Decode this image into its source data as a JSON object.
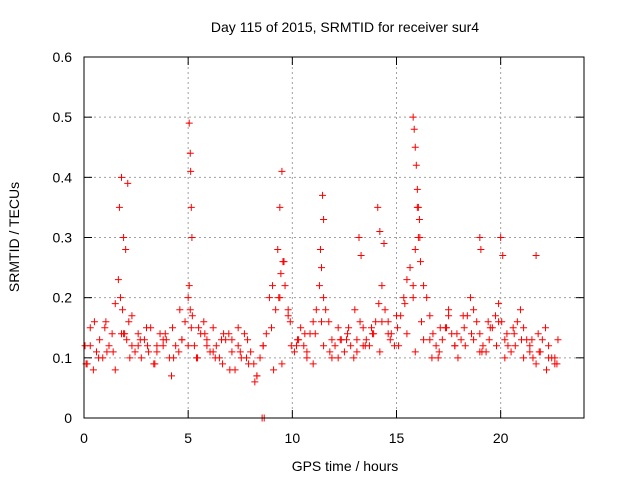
{
  "chart_data": {
    "type": "scatter",
    "title": "Day 115 of 2015, SRMTID for receiver sur4",
    "xlabel": "GPS time / hours",
    "ylabel": "SRMTID / TECUs",
    "xlim": [
      0,
      24
    ],
    "ylim": [
      0,
      0.6
    ],
    "x_ticks": [
      0,
      5,
      10,
      15,
      20
    ],
    "x_tick_labels": [
      "0",
      "5",
      "10",
      "15",
      "20"
    ],
    "y_ticks": [
      0,
      0.1,
      0.2,
      0.3,
      0.4,
      0.5,
      0.6
    ],
    "y_tick_labels": [
      "0",
      "0.1",
      "0.2",
      "0.3",
      "0.4",
      "0.5",
      "0.6"
    ],
    "grid": true,
    "marker": "+",
    "marker_color": "#ff0000",
    "series": [
      {
        "name": "SRMTID",
        "x": [
          0.05,
          0.15,
          0.3,
          0.45,
          0.6,
          0.75,
          0.9,
          1.05,
          1.2,
          1.35,
          1.5,
          1.65,
          1.75,
          1.85,
          1.95,
          2.05,
          2.15,
          2.3,
          2.45,
          2.6,
          2.75,
          2.9,
          3.05,
          3.2,
          3.35,
          3.5,
          3.65,
          3.8,
          3.95,
          4.1,
          4.25,
          4.4,
          4.55,
          4.7,
          4.85,
          5.0,
          5.05,
          5.1,
          5.15,
          5.2,
          5.3,
          5.45,
          5.6,
          5.75,
          5.9,
          6.05,
          6.2,
          6.35,
          6.5,
          6.65,
          6.8,
          6.95,
          7.1,
          7.25,
          7.4,
          7.55,
          7.7,
          7.85,
          8.0,
          8.15,
          8.3,
          8.45,
          8.6,
          8.75,
          8.9,
          9.05,
          9.2,
          9.35,
          9.45,
          9.55,
          9.65,
          9.8,
          9.95,
          10.1,
          10.25,
          10.4,
          10.55,
          10.7,
          10.85,
          11.0,
          11.15,
          11.3,
          11.4,
          11.5,
          11.6,
          11.75,
          11.9,
          12.05,
          12.2,
          12.35,
          12.5,
          12.65,
          12.8,
          12.95,
          13.1,
          13.25,
          13.4,
          13.55,
          13.7,
          13.85,
          14.0,
          14.15,
          14.3,
          14.45,
          14.6,
          14.75,
          14.9,
          15.05,
          15.2,
          15.35,
          15.5,
          15.65,
          15.8,
          15.9,
          16.0,
          16.05,
          16.15,
          16.3,
          16.45,
          16.6,
          16.75,
          16.9,
          17.05,
          17.2,
          17.35,
          17.5,
          17.65,
          17.8,
          17.95,
          18.1,
          18.25,
          18.4,
          18.55,
          18.7,
          18.85,
          19.0,
          19.15,
          19.3,
          19.45,
          19.6,
          19.75,
          19.9,
          20.05,
          20.2,
          20.35,
          20.5,
          20.65,
          20.8,
          20.95,
          21.1,
          21.25,
          21.4,
          21.55,
          21.7,
          21.85,
          22.0,
          22.15,
          22.3,
          22.45,
          22.6,
          22.75,
          0.1,
          0.5,
          1.0,
          1.4,
          1.8,
          2.2,
          2.6,
          3.0,
          3.4,
          3.8,
          4.2,
          4.6,
          5.0,
          5.4,
          5.8,
          6.2,
          6.6,
          7.0,
          7.4,
          7.8,
          8.2,
          8.6,
          9.0,
          9.4,
          9.8,
          10.2,
          10.6,
          11.0,
          11.4,
          11.8,
          12.2,
          12.6,
          13.0,
          13.4,
          13.8,
          14.2,
          14.6,
          15.0,
          15.4,
          15.8,
          16.2,
          16.6,
          17.0,
          17.4,
          17.8,
          18.2,
          18.6,
          19.0,
          19.4,
          19.8,
          20.2,
          20.6,
          21.0,
          21.4,
          21.8,
          22.2,
          22.6,
          0.3,
          0.7,
          1.1,
          1.5,
          1.9,
          2.3,
          2.7,
          3.1,
          3.5,
          3.9,
          4.3,
          4.7,
          5.5,
          5.9,
          6.3,
          6.7,
          7.1,
          7.5,
          7.9,
          8.3,
          9.1,
          9.5,
          9.9,
          10.3,
          10.7,
          11.1,
          11.5,
          11.9,
          12.3,
          12.7,
          13.1,
          13.5,
          13.9,
          14.3,
          14.7,
          15.1,
          15.5,
          15.9,
          16.3,
          16.7,
          17.1,
          17.5,
          17.9,
          18.3,
          18.7,
          19.1,
          19.5,
          19.9,
          20.3,
          20.7,
          21.1,
          21.5,
          21.9,
          22.3,
          22.7,
          1.7,
          1.8,
          1.9,
          2.0,
          2.1,
          5.05,
          5.1,
          5.12,
          5.15,
          5.18,
          9.3,
          9.4,
          9.5,
          9.6,
          11.35,
          11.45,
          11.5,
          13.2,
          13.3,
          14.1,
          14.2,
          14.4,
          15.8,
          15.85,
          15.9,
          15.95,
          16.0,
          16.05,
          16.1,
          16.12,
          19.0,
          19.05,
          20.0,
          20.1,
          21.7,
          8.55,
          8.65
        ],
        "y": [
          0.12,
          0.09,
          0.15,
          0.08,
          0.11,
          0.13,
          0.1,
          0.16,
          0.12,
          0.14,
          0.19,
          0.23,
          0.2,
          0.18,
          0.14,
          0.13,
          0.16,
          0.12,
          0.11,
          0.14,
          0.1,
          0.13,
          0.12,
          0.15,
          0.09,
          0.11,
          0.14,
          0.12,
          0.13,
          0.1,
          0.15,
          0.12,
          0.11,
          0.13,
          0.16,
          0.2,
          0.22,
          0.18,
          0.15,
          0.17,
          0.12,
          0.1,
          0.14,
          0.16,
          0.13,
          0.11,
          0.15,
          0.12,
          0.1,
          0.09,
          0.13,
          0.14,
          0.11,
          0.08,
          0.12,
          0.1,
          0.14,
          0.13,
          0.11,
          0.09,
          0.07,
          0.1,
          0.12,
          0.14,
          0.2,
          0.22,
          0.18,
          0.2,
          0.24,
          0.26,
          0.22,
          0.17,
          0.12,
          0.11,
          0.13,
          0.15,
          0.12,
          0.1,
          0.14,
          0.16,
          0.18,
          0.22,
          0.25,
          0.2,
          0.18,
          0.16,
          0.13,
          0.12,
          0.15,
          0.13,
          0.11,
          0.14,
          0.12,
          0.1,
          0.13,
          0.16,
          0.15,
          0.13,
          0.12,
          0.14,
          0.16,
          0.19,
          0.22,
          0.18,
          0.16,
          0.14,
          0.12,
          0.15,
          0.17,
          0.2,
          0.23,
          0.25,
          0.22,
          0.28,
          0.35,
          0.3,
          0.26,
          0.22,
          0.2,
          0.17,
          0.14,
          0.12,
          0.11,
          0.13,
          0.15,
          0.17,
          0.14,
          0.12,
          0.1,
          0.13,
          0.15,
          0.17,
          0.2,
          0.18,
          0.16,
          0.14,
          0.12,
          0.11,
          0.13,
          0.15,
          0.17,
          0.19,
          0.16,
          0.13,
          0.12,
          0.11,
          0.14,
          0.16,
          0.18,
          0.15,
          0.13,
          0.12,
          0.1,
          0.09,
          0.11,
          0.13,
          0.15,
          0.12,
          0.1,
          0.1,
          0.13,
          0.09,
          0.16,
          0.15,
          0.11,
          0.14,
          0.1,
          0.12,
          0.15,
          0.09,
          0.13,
          0.07,
          0.18,
          0.12,
          0.1,
          0.14,
          0.11,
          0.13,
          0.08,
          0.15,
          0.1,
          0.06,
          0.12,
          0.15,
          0.2,
          0.18,
          0.12,
          0.14,
          0.09,
          0.16,
          0.11,
          0.1,
          0.13,
          0.18,
          0.12,
          0.15,
          0.11,
          0.14,
          0.17,
          0.19,
          0.2,
          0.16,
          0.13,
          0.1,
          0.15,
          0.12,
          0.17,
          0.14,
          0.11,
          0.16,
          0.12,
          0.1,
          0.15,
          0.13,
          0.11,
          0.14,
          0.08,
          0.09,
          0.12,
          0.1,
          0.11,
          0.08,
          0.14,
          0.17,
          0.13,
          0.11,
          0.12,
          0.14,
          0.1,
          0.13,
          0.15,
          0.12,
          0.1,
          0.14,
          0.13,
          0.11,
          0.09,
          0.07,
          0.08,
          0.09,
          0.16,
          0.13,
          0.11,
          0.14,
          0.12,
          0.1,
          0.13,
          0.15,
          0.11,
          0.12,
          0.14,
          0.16,
          0.13,
          0.12,
          0.14,
          0.11,
          0.13,
          0.1,
          0.15,
          0.18,
          0.14,
          0.12,
          0.13,
          0.11,
          0.15,
          0.16,
          0.14,
          0.12,
          0.1,
          0.13,
          0.11,
          0.1,
          0.09,
          0.35,
          0.4,
          0.3,
          0.28,
          0.39,
          0.49,
          0.44,
          0.41,
          0.35,
          0.3,
          0.28,
          0.35,
          0.41,
          0.26,
          0.28,
          0.37,
          0.33,
          0.3,
          0.27,
          0.35,
          0.31,
          0.29,
          0.5,
          0.48,
          0.45,
          0.42,
          0.38,
          0.35,
          0.33,
          0.3,
          0.3,
          0.28,
          0.3,
          0.27,
          0.27,
          0.0,
          0.0
        ]
      }
    ]
  }
}
